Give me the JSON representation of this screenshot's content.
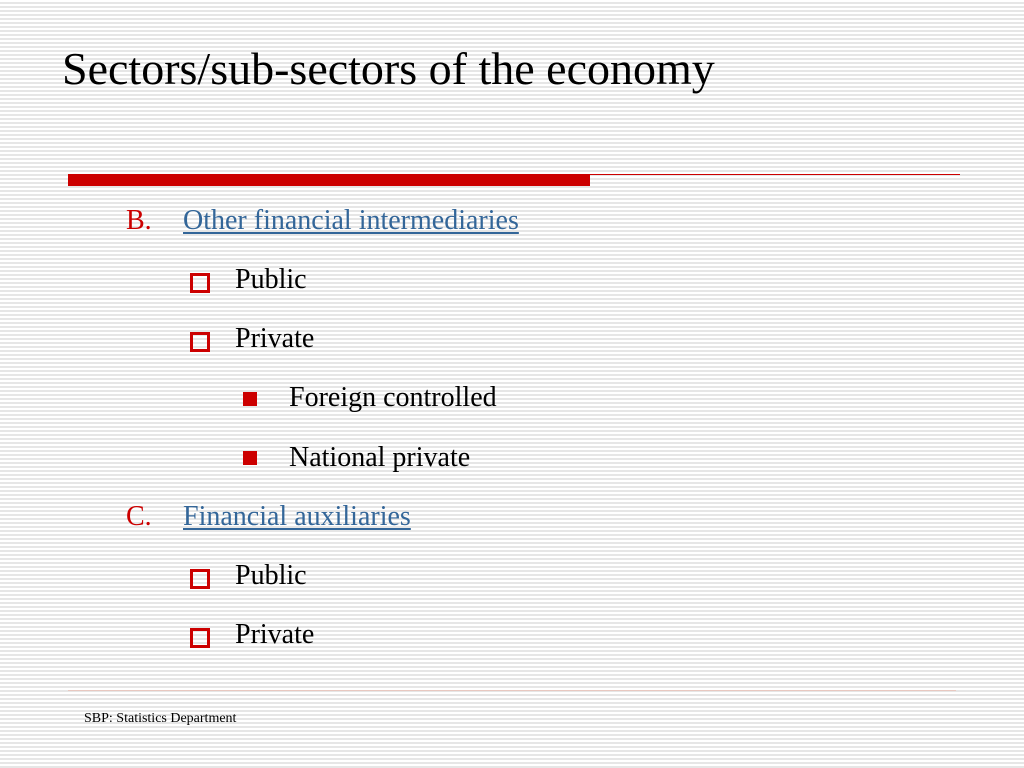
{
  "slide": {
    "title": "Sectors/sub-sectors of the economy",
    "footer": "SBP: Statistics Department",
    "accent_color": "#cc0000",
    "link_color": "#336699"
  },
  "outline": {
    "B": {
      "marker": "B.",
      "label": "Other financial intermediaries",
      "items": [
        {
          "label": "Public"
        },
        {
          "label": "Private",
          "subitems": [
            "Foreign controlled",
            "National private"
          ]
        }
      ]
    },
    "C": {
      "marker": "C.",
      "label": "Financial auxiliaries",
      "items": [
        {
          "label": "Public"
        },
        {
          "label": "Private"
        }
      ]
    }
  },
  "icons": {
    "level2_bullet": "hollow-square-icon",
    "level3_bullet": "filled-square-icon"
  }
}
